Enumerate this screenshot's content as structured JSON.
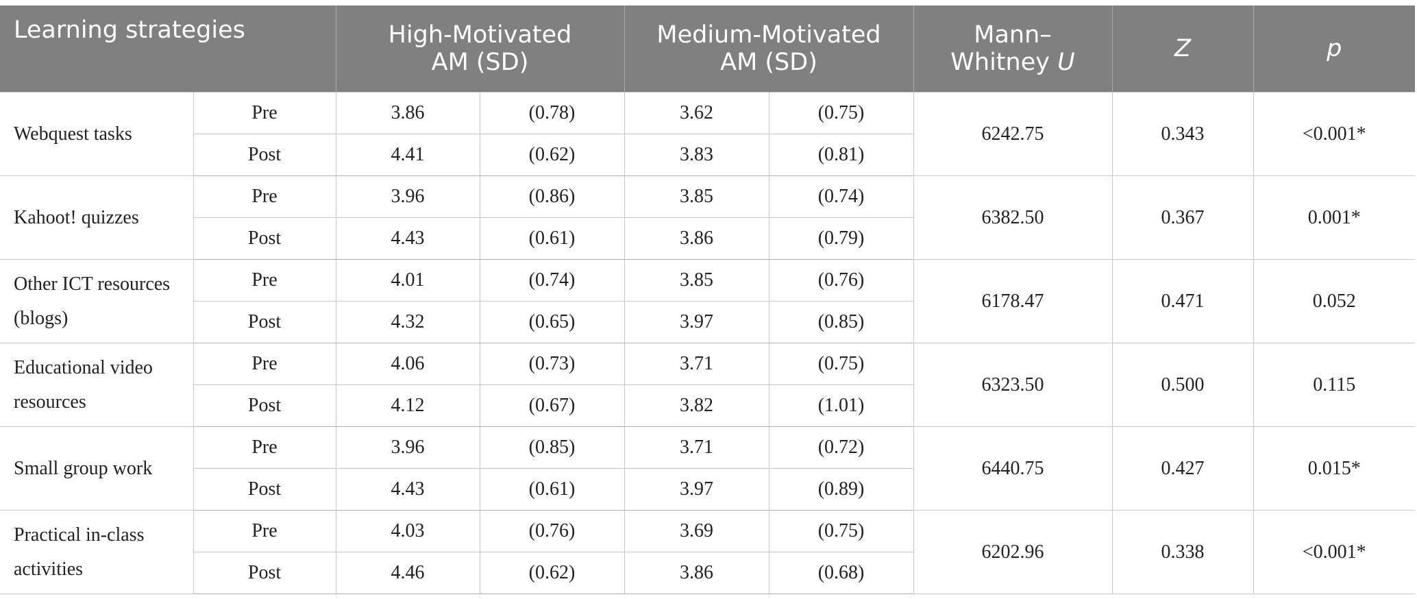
{
  "headers": {
    "strategy": "Learning strategies",
    "high_line1": "High-Motivated",
    "high_line2": "AM (SD)",
    "medium_line1": "Medium-Motivated",
    "medium_line2": "AM (SD)",
    "mw_line1": "Mann–",
    "mw_line2_text": "Whitney ",
    "mw_line2_italic": "U",
    "z": "Z",
    "p": "p"
  },
  "rows": [
    {
      "strategy": "Webquest tasks",
      "pre": {
        "label": "Pre",
        "high_am": "3.86",
        "high_sd": "(0.78)",
        "med_am": "3.62",
        "med_sd": "(0.75)"
      },
      "post": {
        "label": "Post",
        "high_am": "4.41",
        "high_sd": "(0.62)",
        "med_am": "3.83",
        "med_sd": "(0.81)"
      },
      "u": "6242.75",
      "z": "0.343",
      "p": "<0.001*"
    },
    {
      "strategy": "Kahoot! quizzes",
      "pre": {
        "label": "Pre",
        "high_am": "3.96",
        "high_sd": "(0.86)",
        "med_am": "3.85",
        "med_sd": "(0.74)"
      },
      "post": {
        "label": "Post",
        "high_am": "4.43",
        "high_sd": "(0.61)",
        "med_am": "3.86",
        "med_sd": "(0.79)"
      },
      "u": "6382.50",
      "z": "0.367",
      "p": "0.001*"
    },
    {
      "strategy": "Other ICT resources (blogs)",
      "pre": {
        "label": "Pre",
        "high_am": "4.01",
        "high_sd": "(0.74)",
        "med_am": "3.85",
        "med_sd": "(0.76)"
      },
      "post": {
        "label": "Post",
        "high_am": "4.32",
        "high_sd": "(0.65)",
        "med_am": "3.97",
        "med_sd": "(0.85)"
      },
      "u": "6178.47",
      "z": "0.471",
      "p": "0.052"
    },
    {
      "strategy": "Educational video resources",
      "pre": {
        "label": "Pre",
        "high_am": "4.06",
        "high_sd": "(0.73)",
        "med_am": "3.71",
        "med_sd": "(0.75)"
      },
      "post": {
        "label": "Post",
        "high_am": "4.12",
        "high_sd": "(0.67)",
        "med_am": "3.82",
        "med_sd": "(1.01)"
      },
      "u": "6323.50",
      "z": "0.500",
      "p": "0.115"
    },
    {
      "strategy": "Small group work",
      "pre": {
        "label": "Pre",
        "high_am": "3.96",
        "high_sd": "(0.85)",
        "med_am": "3.71",
        "med_sd": "(0.72)"
      },
      "post": {
        "label": "Post",
        "high_am": "4.43",
        "high_sd": "(0.61)",
        "med_am": "3.97",
        "med_sd": "(0.89)"
      },
      "u": "6440.75",
      "z": "0.427",
      "p": "0.015*"
    },
    {
      "strategy": "Practical in-class activities",
      "pre": {
        "label": "Pre",
        "high_am": "4.03",
        "high_sd": "(0.76)",
        "med_am": "3.69",
        "med_sd": "(0.75)"
      },
      "post": {
        "label": "Post",
        "high_am": "4.46",
        "high_sd": "(0.62)",
        "med_am": "3.86",
        "med_sd": "(0.68)"
      },
      "u": "6202.96",
      "z": "0.338",
      "p": "<0.001*"
    }
  ],
  "colors": {
    "header_bg": "#808080",
    "header_text": "#ffffff",
    "grid": "#c8c8c8"
  }
}
